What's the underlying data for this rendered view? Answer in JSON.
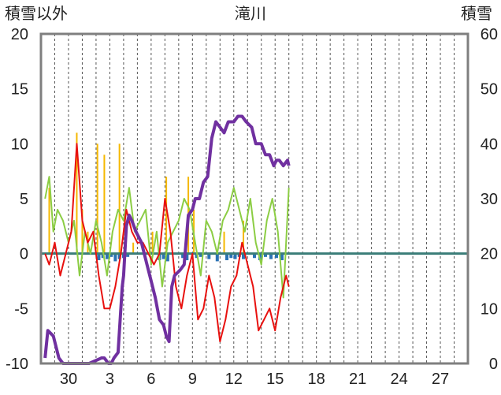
{
  "chart_data": {
    "type": "line",
    "title": "滝川",
    "left_axis_label": "積雪以外",
    "right_axis_label": "積雪",
    "left_ylim": [
      -10,
      20
    ],
    "left_yticks": [
      "-10",
      "-5",
      "0",
      "5",
      "10",
      "15",
      "20"
    ],
    "right_ylim": [
      0,
      60
    ],
    "right_yticks": [
      "0",
      "10",
      "20",
      "30",
      "40",
      "50",
      "60"
    ],
    "x_tick_labels": [
      "30",
      "3",
      "6",
      "9",
      "12",
      "15",
      "18",
      "21",
      "24",
      "27"
    ],
    "x_tick_days": [
      2,
      5,
      8,
      11,
      14,
      17,
      20,
      23,
      26,
      29
    ],
    "days_total": 31,
    "grid": "dashed vertical daily lines, horizontal line at 0",
    "colors": {
      "temperature": "#e8110f",
      "wind": "#8ccd44",
      "precipitation": "#f5b800",
      "sunshine_negative": "#2a72b5",
      "snow_depth": "#7030a0",
      "zero_line": "#3a7d78",
      "frame": "#7f7f7f"
    },
    "series": [
      {
        "key": "snow_depth",
        "axis": "right",
        "x": [
          0.3,
          0.5,
          0.9,
          1.3,
          1.6,
          2.2,
          2.6,
          3.5,
          4.4,
          4.6,
          4.9,
          5.1,
          5.3,
          5.6,
          5.9,
          6.0,
          6.2,
          6.4,
          6.6,
          6.9,
          7.3,
          7.7,
          8.0,
          8.3,
          8.6,
          8.9,
          9.1,
          9.3,
          9.5,
          9.7,
          10.1,
          10.4,
          10.7,
          11.0,
          11.2,
          11.5,
          11.8,
          12.1,
          12.4,
          12.7,
          13.0,
          13.3,
          13.6,
          14.0,
          14.3,
          14.6,
          14.9,
          15.3,
          15.6,
          16.0,
          16.3,
          16.6,
          16.9,
          17.1,
          17.3,
          17.6,
          17.9,
          18.0
        ],
        "y": [
          1,
          6,
          5,
          1,
          0,
          0,
          0,
          0,
          1,
          1,
          0,
          0,
          1,
          2,
          14,
          16,
          25,
          27,
          26,
          24,
          22,
          18,
          15,
          12,
          8,
          7,
          5,
          4,
          14,
          16,
          17,
          18,
          27,
          28,
          30,
          30,
          33,
          34,
          41,
          44,
          43,
          42,
          44,
          44,
          45,
          45,
          44,
          43,
          40,
          40,
          38,
          38,
          36,
          37,
          37,
          36,
          37,
          36
        ]
      },
      {
        "key": "temperature",
        "axis": "left",
        "x": [
          0.3,
          0.6,
          1.0,
          1.4,
          1.8,
          2.2,
          2.6,
          3.0,
          3.4,
          3.8,
          4.2,
          4.6,
          5.0,
          5.4,
          5.8,
          6.2,
          6.6,
          7.0,
          7.4,
          7.8,
          8.2,
          8.6,
          9.0,
          9.4,
          9.8,
          10.2,
          10.6,
          11.0,
          11.4,
          11.8,
          12.2,
          12.6,
          13.0,
          13.4,
          13.8,
          14.2,
          14.6,
          15.0,
          15.4,
          15.8,
          16.2,
          16.6,
          17.0,
          17.4,
          17.8,
          18.0
        ],
        "y": [
          0,
          -1,
          1,
          -2,
          0,
          2,
          10,
          3,
          1,
          2,
          -2,
          -5,
          -5,
          -3,
          0,
          4,
          2,
          1,
          1,
          0,
          -1,
          0,
          5,
          2,
          -3,
          -5,
          -2,
          0,
          -6,
          -5,
          -2,
          -4,
          -8,
          -6,
          -3,
          -2,
          1,
          -1,
          -3,
          -7,
          -6,
          -5,
          -7,
          -4,
          -2,
          -3
        ]
      },
      {
        "key": "wind",
        "axis": "left",
        "x": [
          0.3,
          0.6,
          0.9,
          1.2,
          1.6,
          2.0,
          2.4,
          2.8,
          3.2,
          3.6,
          4.0,
          4.4,
          4.8,
          5.2,
          5.6,
          6.0,
          6.4,
          6.8,
          7.2,
          7.6,
          8.0,
          8.4,
          8.8,
          9.2,
          9.6,
          10.0,
          10.4,
          10.8,
          11.2,
          11.6,
          12.0,
          12.4,
          12.8,
          13.2,
          13.6,
          14.0,
          14.4,
          14.8,
          15.2,
          15.6,
          16.0,
          16.4,
          16.8,
          17.2,
          17.6,
          18.0
        ],
        "y": [
          5,
          7,
          2,
          4,
          3,
          1,
          3,
          -2,
          2,
          0,
          3,
          1,
          -2,
          2,
          4,
          3,
          6,
          2,
          3,
          4,
          -1,
          2,
          -3,
          1,
          2,
          3,
          5,
          4,
          1,
          -2,
          3,
          2,
          0,
          3,
          4,
          6,
          4,
          2,
          5,
          1,
          -1,
          3,
          5,
          2,
          -4,
          6
        ]
      }
    ],
    "precipitation_bars": {
      "axis": "left",
      "x": [
        0.6,
        2.6,
        3.0,
        3.4,
        4.1,
        4.6,
        5.7,
        6.1,
        6.7,
        7.9,
        8.1,
        9.1,
        10.7,
        11.1,
        13.3,
        14.7
      ],
      "values": [
        6,
        11,
        4,
        2,
        10,
        9,
        10,
        3,
        1,
        1,
        2,
        7,
        7,
        4,
        2,
        3
      ]
    },
    "sunshine_ticks": {
      "axis": "left",
      "x": [
        4.2,
        4.5,
        4.8,
        5.1,
        5.4,
        5.7,
        6.0,
        6.3,
        8.6,
        8.9,
        9.2,
        10.3,
        10.6,
        11.3,
        11.6,
        12.2,
        12.8,
        13.5,
        13.8,
        14.1,
        14.4,
        14.7,
        15.5,
        15.9,
        16.3,
        16.7,
        17.1,
        17.5
      ],
      "values": [
        -0.6,
        -0.4,
        -0.5,
        -0.3,
        -0.7,
        -0.5,
        -0.4,
        -0.3,
        -0.6,
        -0.5,
        -0.7,
        -0.4,
        -0.6,
        -0.4,
        -0.3,
        -0.5,
        -0.7,
        -0.6,
        -0.4,
        -0.5,
        -0.3,
        -0.5,
        -0.4,
        -0.6,
        -0.3,
        -0.5,
        -0.4,
        -0.6
      ]
    }
  }
}
